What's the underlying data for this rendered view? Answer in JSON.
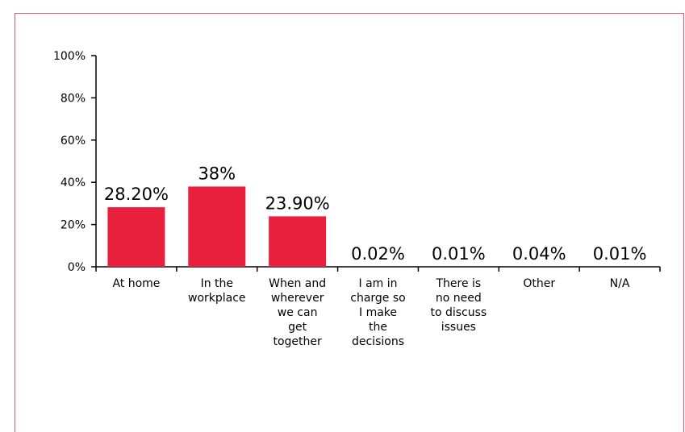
{
  "chart_data": {
    "type": "bar",
    "categories": [
      "At home",
      "In the workplace",
      "When and wherever we can get together",
      "I am in charge so I make the decisions",
      "There is no need to discuss issues",
      "Other",
      "N/A"
    ],
    "category_lines": [
      [
        "At home"
      ],
      [
        "In the",
        "workplace"
      ],
      [
        "When and",
        "wherever",
        "we can",
        "get",
        "together"
      ],
      [
        "I am in",
        "charge so",
        "I make",
        "the",
        "decisions"
      ],
      [
        "There is",
        "no need",
        "to discuss",
        "issues"
      ],
      [
        "Other"
      ],
      [
        "N/A"
      ]
    ],
    "values": [
      28.2,
      38,
      23.9,
      0.02,
      0.01,
      0.04,
      0.01
    ],
    "data_labels": [
      "28.20%",
      "38%",
      "23.90%",
      "0.02%",
      "0.01%",
      "0.04%",
      "0.01%"
    ],
    "yticks": [
      "0%",
      "20%",
      "40%",
      "60%",
      "80%",
      "100%"
    ],
    "ylim": [
      0,
      100
    ],
    "bar_color": "#e8203e",
    "frame_color": "#d9536b",
    "title": "",
    "xlabel": "",
    "ylabel": ""
  }
}
